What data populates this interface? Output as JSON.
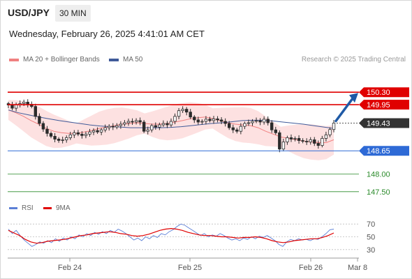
{
  "header": {
    "symbol": "USD/JPY",
    "timeframe": "30 MIN",
    "datetime": "Wednesday, February 26, 2025 4:41:01 AM CET"
  },
  "legend": {
    "ma20_label": "MA 20 + Bollinger Bands",
    "ma50_label": "MA 50",
    "credit": "Research © 2025 Trading Central",
    "rsi_label": "RSI",
    "ma9_label": "9MA"
  },
  "colors": {
    "ma20": "#f08080",
    "ma50": "#3f5a99",
    "bollinger_fill": "#fde1e1",
    "resistance": "#e00000",
    "support": "#2e6ad6",
    "target": "#2a8a2a",
    "up_candle": "#ffffff",
    "down_candle": "#2b2b2b",
    "rsi": "#5b7fd6",
    "ma9": "#e00000",
    "arrow": "#1f5aa6"
  },
  "chart_data": [
    {
      "type": "candlestick",
      "title": "USD/JPY 30 MIN",
      "x_tick_labels": [
        "Feb 24",
        "Feb 25",
        "Feb 26",
        "Mar 8"
      ],
      "ylim": [
        147.3,
        150.5
      ],
      "series": [
        {
          "name": "USD/JPY",
          "values": [
            149.94,
            149.85,
            149.95,
            149.98,
            150.02,
            149.96,
            149.9,
            149.62,
            149.42,
            149.26,
            149.14,
            149.06,
            148.98,
            148.94,
            148.96,
            149.02,
            149.1,
            149.16,
            149.12,
            149.08,
            149.12,
            149.18,
            149.22,
            149.18,
            149.24,
            149.3,
            149.34,
            149.32,
            149.36,
            149.4,
            149.44,
            149.48,
            149.46,
            149.5,
            149.46,
            149.2,
            149.24,
            149.36,
            149.32,
            149.38,
            149.42,
            149.38,
            149.48,
            149.62,
            149.78,
            149.82,
            149.74,
            149.6,
            149.52,
            149.46,
            149.48,
            149.54,
            149.5,
            149.55,
            149.52,
            149.48,
            149.42,
            149.3,
            149.24,
            149.2,
            149.34,
            149.42,
            149.44,
            149.48,
            149.5,
            149.46,
            149.54,
            149.44,
            149.24,
            149.16,
            148.7,
            148.9,
            149.02,
            148.98,
            149.0,
            148.94,
            148.92,
            148.9,
            148.96,
            148.86,
            148.8,
            149.0,
            149.1,
            149.25,
            149.43
          ]
        },
        {
          "name": "MA 20",
          "values": [
            149.8,
            149.72,
            149.62,
            149.5,
            149.4,
            149.28,
            149.2,
            149.16,
            149.14,
            149.14,
            149.18,
            149.22,
            149.28,
            149.32,
            149.36,
            149.4,
            149.42,
            149.44,
            149.42,
            149.4,
            149.4,
            149.42,
            149.46,
            149.5,
            149.55,
            149.58,
            149.6,
            149.56,
            149.5,
            149.44,
            149.4,
            149.38,
            149.36,
            149.3,
            149.2,
            149.12,
            149.04,
            149.0,
            148.96,
            148.92,
            148.9,
            148.88,
            148.88,
            148.96
          ]
        },
        {
          "name": "MA 50",
          "values": [
            149.8,
            149.72,
            149.66,
            149.6,
            149.55,
            149.5,
            149.46,
            149.42,
            149.38,
            149.35,
            149.33,
            149.32,
            149.3,
            149.3,
            149.3,
            149.3,
            149.31,
            149.33,
            149.36,
            149.39,
            149.42,
            149.44,
            149.47,
            149.5,
            149.51,
            149.51,
            149.49,
            149.46,
            149.43,
            149.4,
            149.36,
            149.32,
            149.28
          ]
        }
      ],
      "levels": [
        {
          "label": "150.30",
          "value": 150.3,
          "kind": "resistance"
        },
        {
          "label": "149.95",
          "value": 149.95,
          "kind": "resistance"
        },
        {
          "label": "149.43",
          "value": 149.43,
          "kind": "last"
        },
        {
          "label": "148.65",
          "value": 148.65,
          "kind": "support"
        },
        {
          "label": "148.00",
          "value": 148.0,
          "kind": "target"
        },
        {
          "label": "147.50",
          "value": 147.5,
          "kind": "target"
        }
      ],
      "forecast": {
        "from": 149.43,
        "to": 150.3
      },
      "grid": false,
      "legend": "top-left"
    },
    {
      "type": "line",
      "ylim": [
        20,
        80
      ],
      "y_tick_labels": [
        "70",
        "50",
        "30"
      ],
      "series": [
        {
          "name": "RSI",
          "values": [
            62,
            55,
            60,
            52,
            45,
            40,
            35,
            38,
            42,
            40,
            44,
            41,
            47,
            43,
            48,
            45,
            50,
            47,
            53,
            50,
            55,
            52,
            57,
            54,
            58,
            55,
            60,
            57,
            62,
            59,
            55,
            50,
            45,
            48,
            44,
            50,
            47,
            52,
            49,
            55,
            53,
            58,
            61,
            66,
            70,
            68,
            64,
            60,
            56,
            52,
            55,
            50,
            53,
            51,
            55,
            52,
            48,
            45,
            47,
            44,
            48,
            46,
            50,
            47,
            51,
            49,
            52,
            48,
            44,
            38,
            35,
            42,
            46,
            44,
            47,
            45,
            46,
            44,
            47,
            46,
            50,
            55,
            61,
            62
          ]
        },
        {
          "name": "9MA",
          "values": [
            60,
            56,
            52,
            46,
            42,
            40,
            41,
            43,
            44,
            45,
            46,
            48,
            50,
            52,
            53,
            55,
            56,
            57,
            58,
            57,
            55,
            54,
            52,
            51,
            52,
            54,
            57,
            60,
            62,
            63,
            62,
            60,
            57,
            55,
            53,
            52,
            52,
            51,
            50,
            50,
            49,
            48,
            49,
            49,
            50,
            49,
            47,
            44,
            42,
            41,
            42,
            44,
            45,
            46,
            47,
            47,
            49,
            52,
            56
          ]
        }
      ]
    }
  ]
}
